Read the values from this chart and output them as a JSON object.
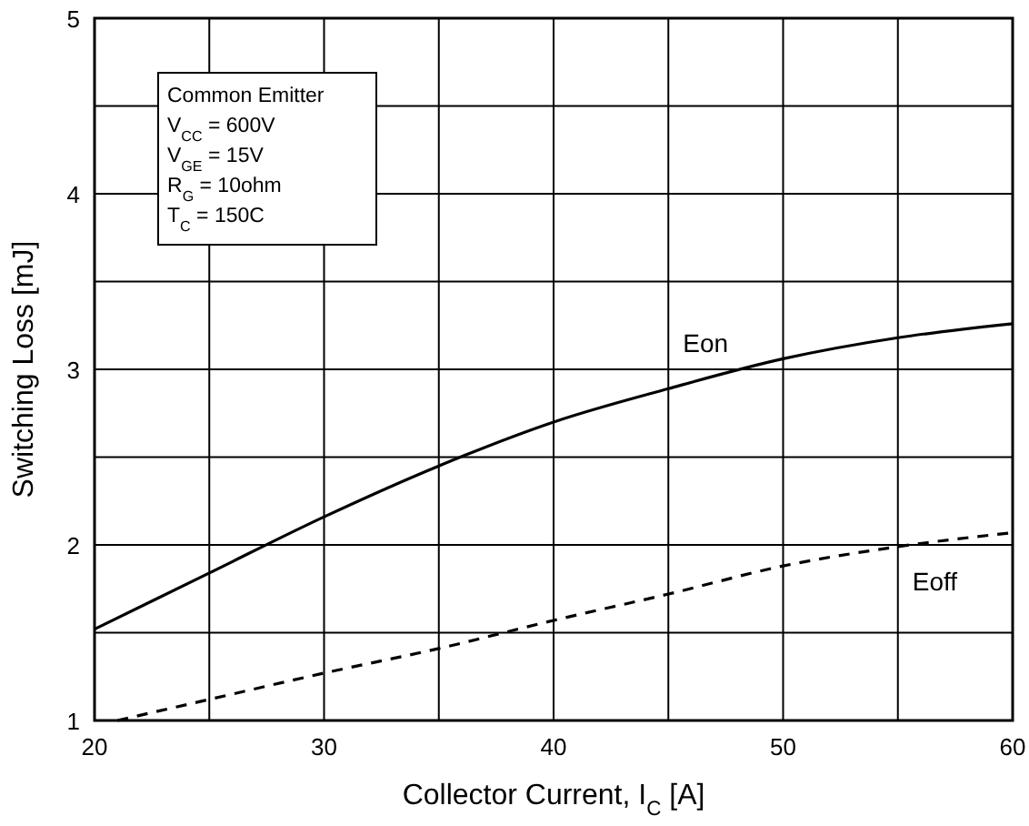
{
  "chart_data": {
    "type": "line",
    "xlabel": "Collector Current, I$_{C}$ [A]",
    "ylabel": "Switching Loss [mJ]",
    "annotations": [
      "Common Emitter",
      "V$_{CC}$ = 600V",
      "V$_{GE}$ = 15V",
      "R$_{G}$ = 10ohm",
      "T$_{C}$ = 150C"
    ],
    "xlim": [
      20,
      60
    ],
    "ylim": [
      1,
      5
    ],
    "xticks": [
      20,
      {
        "value": 25,
        "label": null
      },
      30,
      {
        "value": 35,
        "label": null
      },
      40,
      {
        "value": 45,
        "label": null
      },
      50,
      {
        "value": 55,
        "label": null
      },
      60
    ],
    "yticks": [
      1,
      {
        "value": 1.5,
        "label": null
      },
      2,
      {
        "value": 2.5,
        "label": null
      },
      3,
      {
        "value": 3.5,
        "label": null
      },
      4,
      {
        "value": 4.5,
        "label": null
      },
      5
    ],
    "grid": true,
    "series": [
      {
        "name": "Eon",
        "color": "#000000",
        "line_style": "solid",
        "x": [
          20,
          25,
          30,
          35,
          40,
          45,
          50,
          55,
          60
        ],
        "values": [
          1.52,
          1.84,
          2.16,
          2.45,
          2.7,
          2.89,
          3.06,
          3.18,
          3.26
        ]
      },
      {
        "name": "Eoff",
        "color": "#000000",
        "line_style": "dashed",
        "x": [
          21,
          25,
          30,
          35,
          40,
          45,
          50,
          55,
          60
        ],
        "values": [
          1.0,
          1.12,
          1.27,
          1.41,
          1.57,
          1.72,
          1.88,
          1.99,
          2.07
        ]
      }
    ]
  }
}
